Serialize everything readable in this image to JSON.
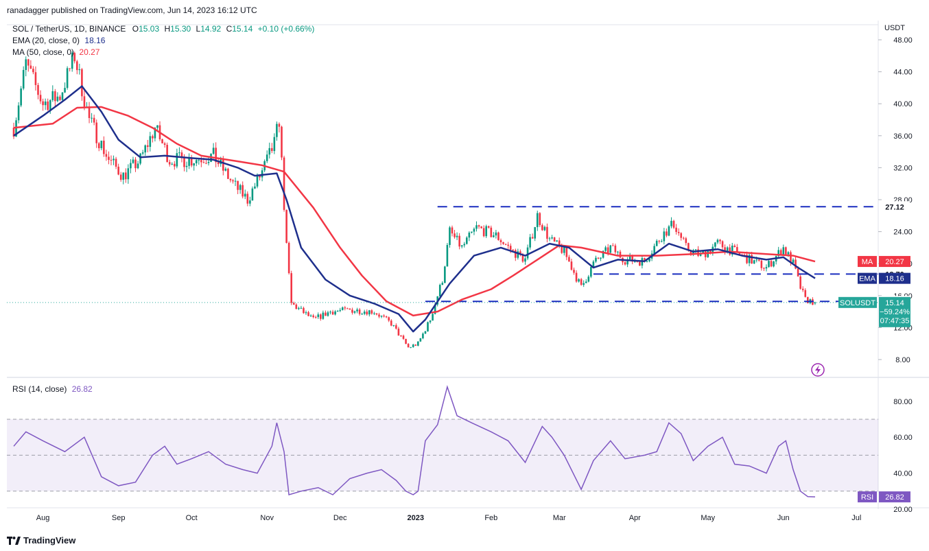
{
  "header": {
    "published": "ranadagger published on TradingView.com, Jun 14, 2023 16:12 UTC"
  },
  "symbol": {
    "title": "SOL / TetherUS, 1D, BINANCE",
    "o_label": "O",
    "o": "15.03",
    "h_label": "H",
    "h": "15.30",
    "l_label": "L",
    "l": "14.92",
    "c_label": "C",
    "c": "15.14",
    "change": "+0.10 (+0.66%)"
  },
  "indicators": {
    "ema_label": "EMA (20, close, 0)",
    "ema_value": "18.16",
    "ma_label": "MA (50, close, 0)",
    "ma_value": "20.27",
    "rsi_label": "RSI (14, close)",
    "rsi_value": "26.82"
  },
  "price_axis": {
    "currency": "USDT",
    "ticks": [
      "48.00",
      "44.00",
      "40.00",
      "36.00",
      "32.00",
      "28.00",
      "24.00",
      "20.00",
      "16.00",
      "12.00",
      "8.00"
    ]
  },
  "rsi_axis": {
    "ticks": [
      "80.00",
      "60.00",
      "40.00",
      "20.00"
    ]
  },
  "time_axis": {
    "labels": [
      "Aug",
      "Sep",
      "Oct",
      "Nov",
      "Dec",
      "2023",
      "Feb",
      "Mar",
      "Apr",
      "May",
      "Jun",
      "Jul"
    ]
  },
  "levels": [
    {
      "value": "27.12"
    },
    {
      "value": "18.70"
    },
    {
      "value": "15.28"
    }
  ],
  "badges": {
    "ma": {
      "label": "MA",
      "value": "20.27",
      "color": "#f23645"
    },
    "ema": {
      "label": "EMA",
      "value": "18.16",
      "color": "#1e2f8c"
    },
    "price": {
      "label": "SOLUSDT",
      "value": "15.14",
      "change": "−59.24%",
      "countdown": "07:47:35",
      "color": "#26a69a"
    },
    "rsi": {
      "label": "RSI",
      "value": "26.82",
      "color": "#7e57c2"
    }
  },
  "footer": {
    "brand": "TradingView"
  },
  "icons": {
    "lightning": "lightning-icon",
    "logo": "tradingview-logo-icon"
  },
  "colors": {
    "up": "#089981",
    "down": "#f23645",
    "ema": "#1e2f8c",
    "ma": "#f23645",
    "rsi": "#7e57c2",
    "levels": "#1a2dbf"
  },
  "chart_data": [
    {
      "type": "candlestick",
      "title": "SOL / TetherUS, 1D, BINANCE",
      "ylabel": "USDT",
      "ylim": [
        8,
        48
      ],
      "x_ticks": [
        "Aug",
        "Sep",
        "Oct",
        "Nov",
        "Dec",
        "2023",
        "Feb",
        "Mar",
        "Apr",
        "May",
        "Jun",
        "Jul"
      ],
      "ohlc_last": {
        "open": 15.03,
        "high": 15.3,
        "low": 14.92,
        "close": 15.14
      },
      "horizontal_levels": [
        27.12,
        18.7,
        15.28
      ],
      "series": [
        {
          "name": "EMA (20, close, 0)",
          "points": [
            [
              "Jul 20",
              36
            ],
            [
              "Aug 1",
              38.5
            ],
            [
              "Aug 10",
              40.5
            ],
            [
              "Aug 17",
              42.2
            ],
            [
              "Aug 25",
              39
            ],
            [
              "Sep 1",
              35.5
            ],
            [
              "Sep 10",
              33.3
            ],
            [
              "Sep 20",
              33.5
            ],
            [
              "Oct 1",
              33.2
            ],
            [
              "Oct 10",
              33
            ],
            [
              "Oct 20",
              32
            ],
            [
              "Oct 27",
              31
            ],
            [
              "Nov 5",
              31.3
            ],
            [
              "Nov 9",
              28
            ],
            [
              "Nov 15",
              22
            ],
            [
              "Nov 25",
              18
            ],
            [
              "Dec 5",
              16
            ],
            [
              "Dec 15",
              15
            ],
            [
              "Dec 25",
              13.7
            ],
            [
              "Dec 31",
              11.5
            ],
            [
              "Jan 5",
              13
            ],
            [
              "Jan 15",
              17.5
            ],
            [
              "Jan 25",
              21
            ],
            [
              "Feb 5",
              22
            ],
            [
              "Feb 15",
              21
            ],
            [
              "Feb 25",
              22.5
            ],
            [
              "Mar 5",
              22
            ],
            [
              "Mar 15",
              19.5
            ],
            [
              "Mar 25",
              20.5
            ],
            [
              "Apr 5",
              20.3
            ],
            [
              "Apr 15",
              22.5
            ],
            [
              "Apr 25",
              21.5
            ],
            [
              "May 5",
              21.8
            ],
            [
              "May 15",
              21
            ],
            [
              "May 25",
              20.5
            ],
            [
              "Jun 1",
              20.8
            ],
            [
              "Jun 7",
              19.5
            ],
            [
              "Jun 14",
              18.16
            ]
          ]
        },
        {
          "name": "MA (50, close, 0)",
          "points": [
            [
              "Jul 20",
              37
            ],
            [
              "Aug 5",
              37.5
            ],
            [
              "Aug 15",
              39.5
            ],
            [
              "Aug 25",
              39.6
            ],
            [
              "Sep 5",
              38.5
            ],
            [
              "Sep 15",
              37
            ],
            [
              "Sep 25",
              35
            ],
            [
              "Oct 5",
              33.5
            ],
            [
              "Oct 20",
              32.8
            ],
            [
              "Oct 30",
              32.3
            ],
            [
              "Nov 8",
              31.5
            ],
            [
              "Nov 20",
              27
            ],
            [
              "Dec 1",
              22
            ],
            [
              "Dec 10",
              18.5
            ],
            [
              "Dec 20",
              15.3
            ],
            [
              "Dec 31",
              13.5
            ],
            [
              "Jan 10",
              14
            ],
            [
              "Jan 20",
              15.5
            ],
            [
              "Feb 1",
              16.8
            ],
            [
              "Feb 10",
              18.5
            ],
            [
              "Feb 20",
              20.5
            ],
            [
              "Mar 1",
              22.3
            ],
            [
              "Mar 10",
              22
            ],
            [
              "Mar 25",
              21
            ],
            [
              "Apr 10",
              21
            ],
            [
              "Apr 25",
              21.2
            ],
            [
              "May 10",
              21.5
            ],
            [
              "May 25",
              21.2
            ],
            [
              "Jun 5",
              21
            ],
            [
              "Jun 14",
              20.27
            ]
          ]
        }
      ]
    },
    {
      "type": "line",
      "title": "RSI (14, close)",
      "ylim": [
        20,
        90
      ],
      "bands": [
        30,
        50,
        70
      ],
      "x_ticks": [
        "Aug",
        "Sep",
        "Oct",
        "Nov",
        "Dec",
        "2023",
        "Feb",
        "Mar",
        "Apr",
        "May",
        "Jun",
        "Jul"
      ],
      "series": [
        {
          "name": "RSI (14, close)",
          "points": [
            [
              "Jul 20",
              55
            ],
            [
              "Jul 25",
              63
            ],
            [
              "Aug 1",
              58
            ],
            [
              "Aug 10",
              52
            ],
            [
              "Aug 18",
              60
            ],
            [
              "Aug 25",
              38
            ],
            [
              "Sep 1",
              33
            ],
            [
              "Sep 8",
              35
            ],
            [
              "Sep 15",
              50
            ],
            [
              "Sep 20",
              55
            ],
            [
              "Sep 25",
              45
            ],
            [
              "Oct 1",
              48
            ],
            [
              "Oct 8",
              52
            ],
            [
              "Oct 15",
              45
            ],
            [
              "Oct 22",
              42
            ],
            [
              "Oct 28",
              40
            ],
            [
              "Nov 3",
              55
            ],
            [
              "Nov 5",
              68
            ],
            [
              "Nov 8",
              52
            ],
            [
              "Nov 10",
              28
            ],
            [
              "Nov 15",
              30
            ],
            [
              "Nov 22",
              32
            ],
            [
              "Nov 28",
              28
            ],
            [
              "Dec 5",
              37
            ],
            [
              "Dec 12",
              40
            ],
            [
              "Dec 18",
              42
            ],
            [
              "Dec 24",
              36
            ],
            [
              "Dec 28",
              30
            ],
            [
              "Dec 31",
              28
            ],
            [
              "Jan 2",
              30
            ],
            [
              "Jan 5",
              58
            ],
            [
              "Jan 10",
              67
            ],
            [
              "Jan 14",
              88
            ],
            [
              "Jan 18",
              72
            ],
            [
              "Jan 24",
              68
            ],
            [
              "Feb 1",
              63
            ],
            [
              "Feb 8",
              58
            ],
            [
              "Feb 15",
              46
            ],
            [
              "Feb 22",
              66
            ],
            [
              "Feb 26",
              60
            ],
            [
              "Mar 3",
              50
            ],
            [
              "Mar 10",
              31
            ],
            [
              "Mar 15",
              47
            ],
            [
              "Mar 22",
              58
            ],
            [
              "Mar 28",
              48
            ],
            [
              "Apr 5",
              50
            ],
            [
              "Apr 10",
              52
            ],
            [
              "Apr 15",
              68
            ],
            [
              "Apr 20",
              62
            ],
            [
              "Apr 25",
              47
            ],
            [
              "May 1",
              55
            ],
            [
              "May 7",
              60
            ],
            [
              "May 12",
              45
            ],
            [
              "May 18",
              44
            ],
            [
              "May 25",
              40
            ],
            [
              "May 30",
              55
            ],
            [
              "Jun 2",
              58
            ],
            [
              "Jun 5",
              42
            ],
            [
              "Jun 8",
              30
            ],
            [
              "Jun 11",
              27
            ],
            [
              "Jun 14",
              26.82
            ]
          ]
        }
      ]
    }
  ]
}
